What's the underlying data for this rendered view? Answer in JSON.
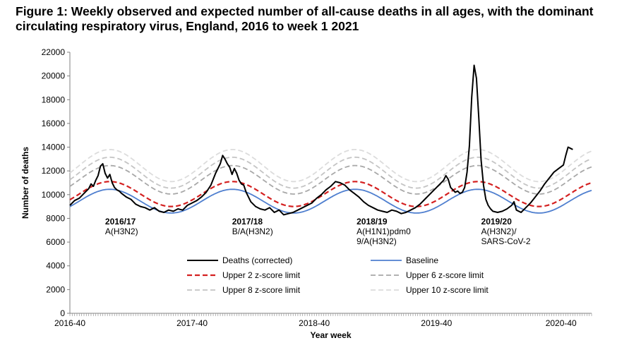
{
  "title": "Figure 1: Weekly observed and expected number of all-cause deaths in all ages, with the dominant circulating respiratory virus, England, 2016 to week 1 2021",
  "chart_data": {
    "type": "line",
    "title": "Figure 1: Weekly observed and expected number of all-cause deaths in all ages, with the dominant circulating respiratory virus, England, 2016 to week 1 2021",
    "xlabel": "Year week",
    "ylabel": "Number of deaths",
    "ylim": [
      0,
      22000
    ],
    "yticks": [
      0,
      2000,
      4000,
      6000,
      8000,
      10000,
      12000,
      14000,
      16000,
      18000,
      20000,
      22000
    ],
    "x_domain_weeks": [
      0,
      222
    ],
    "xtick_labels": [
      {
        "week": 0,
        "label": "2016-40"
      },
      {
        "week": 52,
        "label": "2017-40"
      },
      {
        "week": 104,
        "label": "2018-40"
      },
      {
        "week": 156,
        "label": "2019-40"
      },
      {
        "week": 209,
        "label": "2020-40"
      }
    ],
    "series": [
      {
        "name": "Deaths (corrected)",
        "color": "#000000",
        "style": "solid",
        "points": [
          [
            0,
            9100
          ],
          [
            2,
            9500
          ],
          [
            4,
            9700
          ],
          [
            6,
            10100
          ],
          [
            8,
            10500
          ],
          [
            9,
            10900
          ],
          [
            10,
            10700
          ],
          [
            11,
            11200
          ],
          [
            12,
            11600
          ],
          [
            13,
            12400
          ],
          [
            14,
            12600
          ],
          [
            15,
            11800
          ],
          [
            16,
            11400
          ],
          [
            17,
            11700
          ],
          [
            18,
            11000
          ],
          [
            19,
            10600
          ],
          [
            20,
            10400
          ],
          [
            21,
            10300
          ],
          [
            22,
            10100
          ],
          [
            24,
            9800
          ],
          [
            26,
            9600
          ],
          [
            28,
            9200
          ],
          [
            30,
            9000
          ],
          [
            32,
            8900
          ],
          [
            34,
            8700
          ],
          [
            36,
            8900
          ],
          [
            38,
            8600
          ],
          [
            40,
            8500
          ],
          [
            42,
            8700
          ],
          [
            44,
            8600
          ],
          [
            46,
            8800
          ],
          [
            48,
            8700
          ],
          [
            50,
            9100
          ],
          [
            52,
            9300
          ],
          [
            54,
            9500
          ],
          [
            56,
            9800
          ],
          [
            58,
            10200
          ],
          [
            60,
            10800
          ],
          [
            62,
            11800
          ],
          [
            64,
            12600
          ],
          [
            65,
            13300
          ],
          [
            66,
            13000
          ],
          [
            67,
            12600
          ],
          [
            68,
            12300
          ],
          [
            69,
            11700
          ],
          [
            70,
            12200
          ],
          [
            71,
            11800
          ],
          [
            72,
            11200
          ],
          [
            73,
            10900
          ],
          [
            74,
            10800
          ],
          [
            75,
            10200
          ],
          [
            77,
            9400
          ],
          [
            79,
            9000
          ],
          [
            81,
            8800
          ],
          [
            83,
            8700
          ],
          [
            85,
            8900
          ],
          [
            87,
            8500
          ],
          [
            89,
            8700
          ],
          [
            91,
            8300
          ],
          [
            93,
            8400
          ],
          [
            95,
            8500
          ],
          [
            97,
            8700
          ],
          [
            99,
            8900
          ],
          [
            101,
            9100
          ],
          [
            103,
            9300
          ],
          [
            105,
            9700
          ],
          [
            107,
            10000
          ],
          [
            109,
            10400
          ],
          [
            111,
            10700
          ],
          [
            113,
            11100
          ],
          [
            115,
            11000
          ],
          [
            117,
            10800
          ],
          [
            119,
            10400
          ],
          [
            121,
            10100
          ],
          [
            123,
            9800
          ],
          [
            125,
            9400
          ],
          [
            127,
            9100
          ],
          [
            129,
            8900
          ],
          [
            131,
            8700
          ],
          [
            133,
            8600
          ],
          [
            135,
            8500
          ],
          [
            137,
            8700
          ],
          [
            139,
            8600
          ],
          [
            141,
            8400
          ],
          [
            143,
            8500
          ],
          [
            145,
            8700
          ],
          [
            147,
            8900
          ],
          [
            149,
            9200
          ],
          [
            151,
            9600
          ],
          [
            153,
            10000
          ],
          [
            155,
            10400
          ],
          [
            157,
            10800
          ],
          [
            159,
            11200
          ],
          [
            160,
            11600
          ],
          [
            161,
            11300
          ],
          [
            162,
            10600
          ],
          [
            163,
            10400
          ],
          [
            164,
            10200
          ],
          [
            165,
            10300
          ],
          [
            166,
            10100
          ],
          [
            167,
            10200
          ],
          [
            168,
            10600
          ],
          [
            169,
            11900
          ],
          [
            170,
            14100
          ],
          [
            171,
            18200
          ],
          [
            172,
            20900
          ],
          [
            173,
            19800
          ],
          [
            174,
            16500
          ],
          [
            175,
            12900
          ],
          [
            176,
            10800
          ],
          [
            177,
            9600
          ],
          [
            178,
            9100
          ],
          [
            179,
            8800
          ],
          [
            180,
            8600
          ],
          [
            182,
            8500
          ],
          [
            184,
            8600
          ],
          [
            186,
            8800
          ],
          [
            188,
            9100
          ],
          [
            189,
            9400
          ],
          [
            190,
            8700
          ],
          [
            192,
            8500
          ],
          [
            194,
            8900
          ],
          [
            196,
            9300
          ],
          [
            198,
            9800
          ],
          [
            200,
            10300
          ],
          [
            202,
            10900
          ],
          [
            204,
            11400
          ],
          [
            206,
            11900
          ],
          [
            208,
            12200
          ],
          [
            210,
            12500
          ],
          [
            211,
            13300
          ],
          [
            212,
            14000
          ],
          [
            213,
            13900
          ],
          [
            214,
            13800
          ]
        ]
      },
      {
        "name": "Baseline",
        "color": "#4f7fcf",
        "style": "solid",
        "mean": 9450,
        "amplitude": 1000,
        "peak_week": 17
      },
      {
        "name": "Upper 2 z-score limit",
        "color": "#d42020",
        "style": "dashed",
        "mean": 10050,
        "amplitude": 1050,
        "peak_week": 17
      },
      {
        "name": "Upper 6 z-score limit",
        "color": "#a8a8a8",
        "style": "dashed",
        "mean": 11250,
        "amplitude": 1200,
        "peak_week": 17
      },
      {
        "name": "Upper 8 z-score limit",
        "color": "#c4c4c4",
        "style": "dashed",
        "mean": 11850,
        "amplitude": 1300,
        "peak_week": 17
      },
      {
        "name": "Upper 10 z-score limit",
        "color": "#dcdcdc",
        "style": "dashed",
        "mean": 12450,
        "amplitude": 1350,
        "peak_week": 17
      }
    ],
    "annotations": [
      {
        "season": "2016/17",
        "virus": [
          "A(H3N2)"
        ],
        "week": 15,
        "value": 7500
      },
      {
        "season": "2017/18",
        "virus": [
          "B/A(H3N2)"
        ],
        "week": 69,
        "value": 7500
      },
      {
        "season": "2018/19",
        "virus": [
          "A(H1N1)pdm0",
          "9/A(H3N2)"
        ],
        "week": 122,
        "value": 7500
      },
      {
        "season": "2019/20",
        "virus": [
          "A(H3N2)/",
          "SARS-CoV-2"
        ],
        "week": 175,
        "value": 7500
      }
    ],
    "legend": {
      "placement": "bottom-center",
      "columns": 2
    }
  }
}
